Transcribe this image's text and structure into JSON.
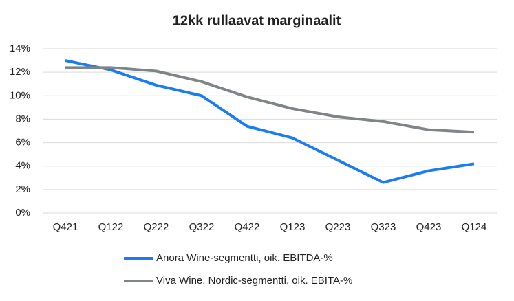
{
  "chart_data": {
    "type": "line",
    "title": "12kk rullaavat marginaalit",
    "categories": [
      "Q421",
      "Q122",
      "Q222",
      "Q322",
      "Q422",
      "Q123",
      "Q223",
      "Q323",
      "Q423",
      "Q124"
    ],
    "series": [
      {
        "name": "Anora Wine-segmentti, oik. EBITDA-%",
        "color": "#1a7cf5",
        "values": [
          13.0,
          12.2,
          10.9,
          10.0,
          7.4,
          6.4,
          4.5,
          2.6,
          3.6,
          4.2
        ]
      },
      {
        "name": "Viva Wine, Nordic-segmentti, oik. EBITA-%",
        "color": "#7f8487",
        "values": [
          12.4,
          12.4,
          12.1,
          11.2,
          9.9,
          8.9,
          8.2,
          7.8,
          7.1,
          6.9
        ]
      }
    ],
    "ylim": [
      0,
      14
    ],
    "yticks": [
      {
        "value": 0,
        "label": "0%"
      },
      {
        "value": 2,
        "label": "2%"
      },
      {
        "value": 4,
        "label": "4%"
      },
      {
        "value": 6,
        "label": "6%"
      },
      {
        "value": 8,
        "label": "8%"
      },
      {
        "value": 10,
        "label": "10%"
      },
      {
        "value": 12,
        "label": "12%"
      },
      {
        "value": 14,
        "label": "14%"
      }
    ],
    "grid": true
  }
}
